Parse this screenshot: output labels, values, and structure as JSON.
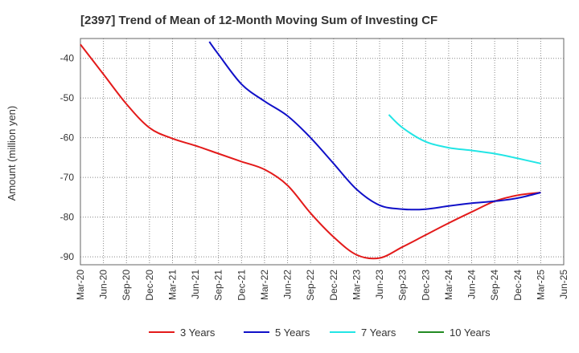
{
  "chart_data": {
    "type": "line",
    "title": "[2397]  Trend of Mean of 12-Month Moving Sum of Investing CF",
    "xlabel": "",
    "ylabel": "Amount (million yen)",
    "ylim": [
      -92,
      -35
    ],
    "yticks": [
      -40,
      -50,
      -60,
      -70,
      -80,
      -90
    ],
    "x_categories": [
      "Mar-20",
      "Jun-20",
      "Sep-20",
      "Dec-20",
      "Mar-21",
      "Jun-21",
      "Sep-21",
      "Dec-21",
      "Mar-22",
      "Jun-22",
      "Sep-22",
      "Dec-22",
      "Mar-23",
      "Jun-23",
      "Sep-23",
      "Dec-23",
      "Mar-24",
      "Jun-24",
      "Sep-24",
      "Dec-24",
      "Mar-25",
      "Jun-25"
    ],
    "grid": true,
    "legend_position": "bottom",
    "series": [
      {
        "name": "3 Years",
        "color": "#e31a1a",
        "points": [
          [
            0,
            -36.5
          ],
          [
            1,
            -44
          ],
          [
            2,
            -51.5
          ],
          [
            3,
            -57.5
          ],
          [
            4,
            -60.2
          ],
          [
            5,
            -62
          ],
          [
            6,
            -64
          ],
          [
            7,
            -66
          ],
          [
            8,
            -68
          ],
          [
            9,
            -72
          ],
          [
            10,
            -79
          ],
          [
            11,
            -85
          ],
          [
            12,
            -89.5
          ],
          [
            13,
            -90.3
          ],
          [
            14,
            -87.5
          ],
          [
            15,
            -84.5
          ],
          [
            16,
            -81.5
          ],
          [
            17,
            -78.7
          ],
          [
            18,
            -76
          ],
          [
            19,
            -74.5
          ],
          [
            20,
            -73.8
          ]
        ]
      },
      {
        "name": "5 Years",
        "color": "#1010c8",
        "points": [
          [
            5.6,
            -35.8
          ],
          [
            6,
            -39
          ],
          [
            7,
            -46.5
          ],
          [
            8,
            -50.8
          ],
          [
            9,
            -54.5
          ],
          [
            10,
            -60
          ],
          [
            11,
            -66.5
          ],
          [
            12,
            -73
          ],
          [
            13,
            -77
          ],
          [
            14,
            -78
          ],
          [
            15,
            -78
          ],
          [
            16,
            -77.2
          ],
          [
            17,
            -76.5
          ],
          [
            18,
            -76
          ],
          [
            19,
            -75.2
          ],
          [
            20,
            -73.8
          ]
        ]
      },
      {
        "name": "7 Years",
        "color": "#22e5e5",
        "points": [
          [
            13.4,
            -54.2
          ],
          [
            14,
            -57.5
          ],
          [
            15,
            -61
          ],
          [
            16,
            -62.5
          ],
          [
            17,
            -63.2
          ],
          [
            18,
            -64
          ],
          [
            19,
            -65.2
          ],
          [
            20,
            -66.5
          ]
        ]
      },
      {
        "name": "10 Years",
        "color": "#228b22",
        "points": []
      }
    ]
  }
}
